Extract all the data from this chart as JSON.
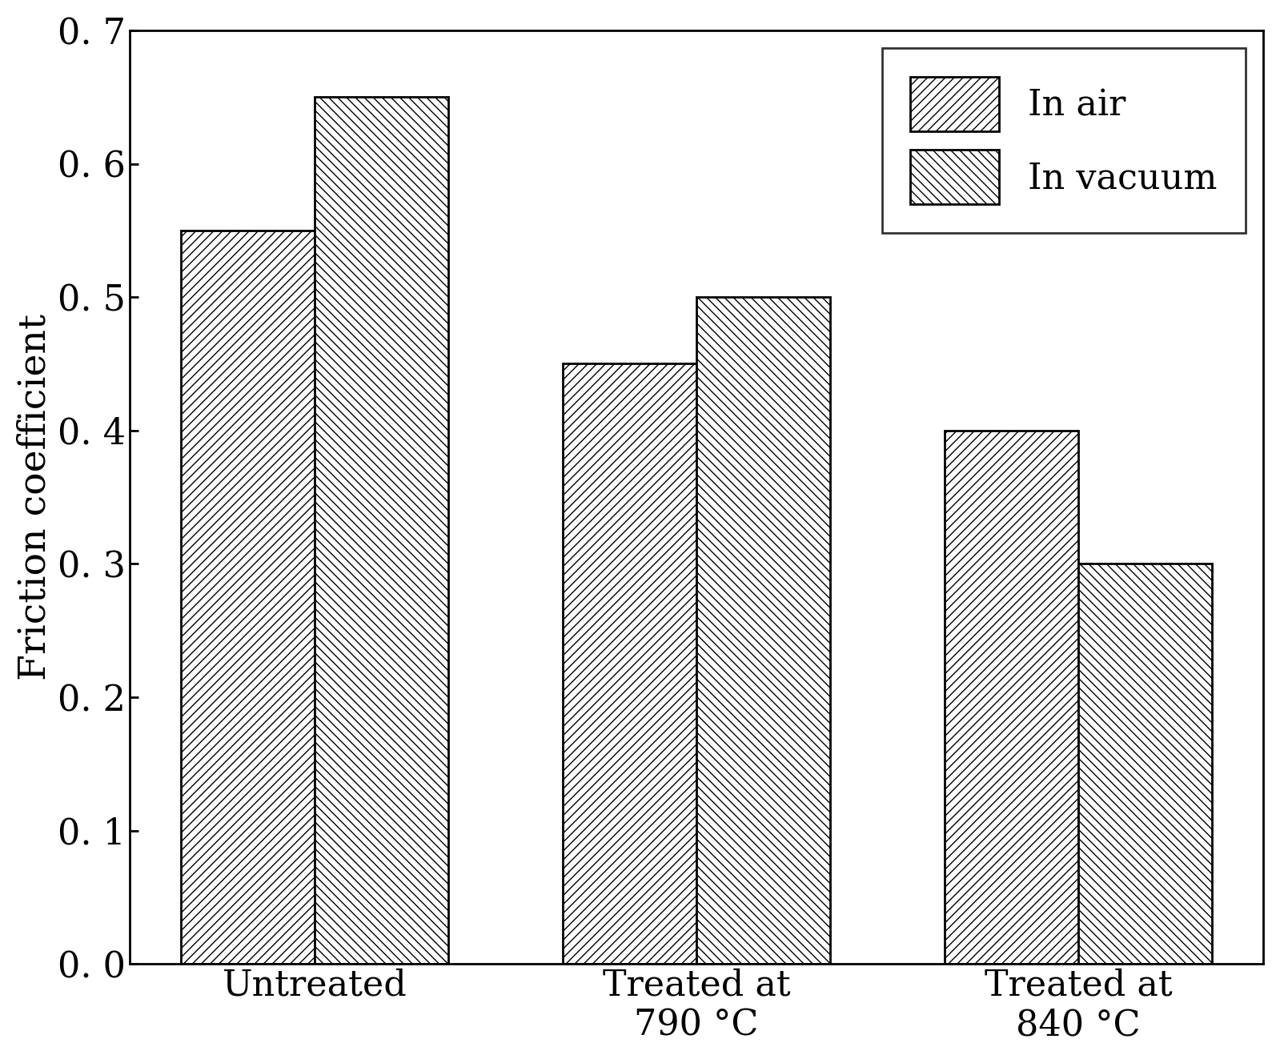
{
  "categories": [
    "Untreated",
    "Treated at\n790 °C",
    "Treated at\n840 °C"
  ],
  "in_air": [
    0.55,
    0.45,
    0.4
  ],
  "in_vacuum": [
    0.65,
    0.5,
    0.3
  ],
  "ylabel": "Friction coefficient",
  "ylim": [
    0.0,
    0.7
  ],
  "yticks": [
    0.0,
    0.1,
    0.2,
    0.3,
    0.4,
    0.5,
    0.6,
    0.7
  ],
  "ytick_labels": [
    "0. 0",
    "0. 1",
    "0. 2",
    "0. 3",
    "0. 4",
    "0. 5",
    "0. 6",
    "0. 7"
  ],
  "bar_width": 0.35,
  "hatch_air": "///",
  "hatch_vacuum": "\\\\\\",
  "legend_labels": [
    "In air",
    "In vacuum"
  ],
  "face_color": "white",
  "edge_color": "black",
  "background_color": "#ffffff",
  "ylabel_fontsize": 34,
  "tick_fontsize": 32,
  "legend_fontsize": 32,
  "xtick_fontsize": 32
}
